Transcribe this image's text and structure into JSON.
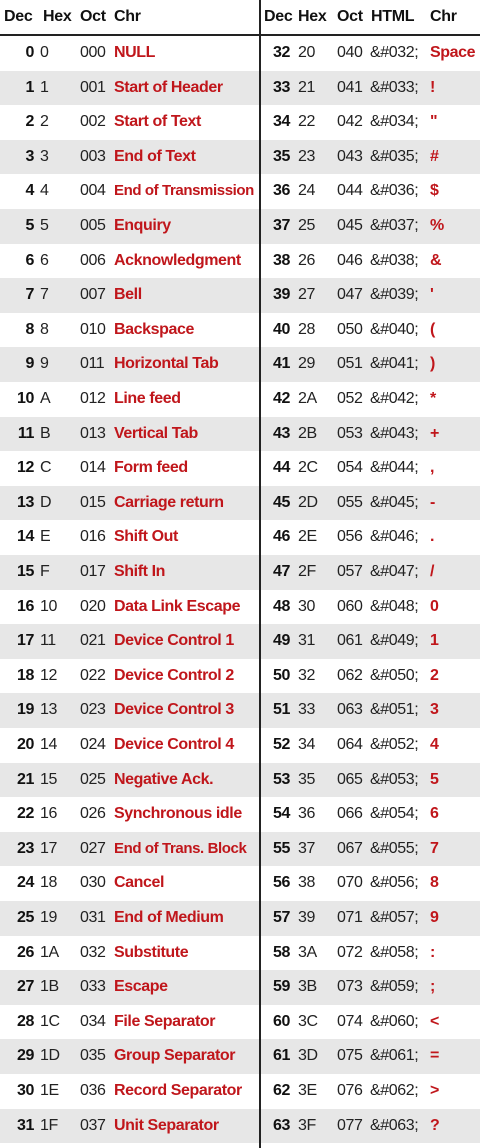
{
  "headers": {
    "left": [
      "Dec",
      "Hex",
      "Oct",
      "Chr"
    ],
    "right": [
      "Dec",
      "Hex",
      "Oct",
      "HTML",
      "Chr"
    ]
  },
  "colors": {
    "accent": "#c0161b",
    "stripe": "#e7e7e7",
    "text": "#111111"
  },
  "left_rows": [
    {
      "dec": "0",
      "hex": "0",
      "oct": "000",
      "chr": "NULL"
    },
    {
      "dec": "1",
      "hex": "1",
      "oct": "001",
      "chr": "Start of Header"
    },
    {
      "dec": "2",
      "hex": "2",
      "oct": "002",
      "chr": "Start of Text"
    },
    {
      "dec": "3",
      "hex": "3",
      "oct": "003",
      "chr": "End of Text"
    },
    {
      "dec": "4",
      "hex": "4",
      "oct": "004",
      "chr": "End of Transmission"
    },
    {
      "dec": "5",
      "hex": "5",
      "oct": "005",
      "chr": "Enquiry"
    },
    {
      "dec": "6",
      "hex": "6",
      "oct": "006",
      "chr": "Acknowledgment"
    },
    {
      "dec": "7",
      "hex": "7",
      "oct": "007",
      "chr": "Bell"
    },
    {
      "dec": "8",
      "hex": "8",
      "oct": "010",
      "chr": "Backspace"
    },
    {
      "dec": "9",
      "hex": "9",
      "oct": "011",
      "chr": "Horizontal Tab"
    },
    {
      "dec": "10",
      "hex": "A",
      "oct": "012",
      "chr": "Line feed"
    },
    {
      "dec": "11",
      "hex": "B",
      "oct": "013",
      "chr": "Vertical Tab"
    },
    {
      "dec": "12",
      "hex": "C",
      "oct": "014",
      "chr": "Form feed"
    },
    {
      "dec": "13",
      "hex": "D",
      "oct": "015",
      "chr": "Carriage return"
    },
    {
      "dec": "14",
      "hex": "E",
      "oct": "016",
      "chr": "Shift Out"
    },
    {
      "dec": "15",
      "hex": "F",
      "oct": "017",
      "chr": "Shift In"
    },
    {
      "dec": "16",
      "hex": "10",
      "oct": "020",
      "chr": "Data Link Escape"
    },
    {
      "dec": "17",
      "hex": "11",
      "oct": "021",
      "chr": "Device Control 1"
    },
    {
      "dec": "18",
      "hex": "12",
      "oct": "022",
      "chr": "Device Control 2"
    },
    {
      "dec": "19",
      "hex": "13",
      "oct": "023",
      "chr": "Device Control 3"
    },
    {
      "dec": "20",
      "hex": "14",
      "oct": "024",
      "chr": "Device Control 4"
    },
    {
      "dec": "21",
      "hex": "15",
      "oct": "025",
      "chr": "Negative Ack."
    },
    {
      "dec": "22",
      "hex": "16",
      "oct": "026",
      "chr": "Synchronous idle"
    },
    {
      "dec": "23",
      "hex": "17",
      "oct": "027",
      "chr": "End of Trans. Block"
    },
    {
      "dec": "24",
      "hex": "18",
      "oct": "030",
      "chr": "Cancel"
    },
    {
      "dec": "25",
      "hex": "19",
      "oct": "031",
      "chr": "End of Medium"
    },
    {
      "dec": "26",
      "hex": "1A",
      "oct": "032",
      "chr": "Substitute"
    },
    {
      "dec": "27",
      "hex": "1B",
      "oct": "033",
      "chr": "Escape"
    },
    {
      "dec": "28",
      "hex": "1C",
      "oct": "034",
      "chr": "File Separator"
    },
    {
      "dec": "29",
      "hex": "1D",
      "oct": "035",
      "chr": "Group Separator"
    },
    {
      "dec": "30",
      "hex": "1E",
      "oct": "036",
      "chr": "Record Separator"
    },
    {
      "dec": "31",
      "hex": "1F",
      "oct": "037",
      "chr": "Unit Separator"
    }
  ],
  "right_rows": [
    {
      "dec": "32",
      "hex": "20",
      "oct": "040",
      "html": "&#032;",
      "chr": "Space"
    },
    {
      "dec": "33",
      "hex": "21",
      "oct": "041",
      "html": "&#033;",
      "chr": "!"
    },
    {
      "dec": "34",
      "hex": "22",
      "oct": "042",
      "html": "&#034;",
      "chr": "\""
    },
    {
      "dec": "35",
      "hex": "23",
      "oct": "043",
      "html": "&#035;",
      "chr": "#"
    },
    {
      "dec": "36",
      "hex": "24",
      "oct": "044",
      "html": "&#036;",
      "chr": "$"
    },
    {
      "dec": "37",
      "hex": "25",
      "oct": "045",
      "html": "&#037;",
      "chr": "%"
    },
    {
      "dec": "38",
      "hex": "26",
      "oct": "046",
      "html": "&#038;",
      "chr": "&"
    },
    {
      "dec": "39",
      "hex": "27",
      "oct": "047",
      "html": "&#039;",
      "chr": "'"
    },
    {
      "dec": "40",
      "hex": "28",
      "oct": "050",
      "html": "&#040;",
      "chr": "("
    },
    {
      "dec": "41",
      "hex": "29",
      "oct": "051",
      "html": "&#041;",
      "chr": ")"
    },
    {
      "dec": "42",
      "hex": "2A",
      "oct": "052",
      "html": "&#042;",
      "chr": "*"
    },
    {
      "dec": "43",
      "hex": "2B",
      "oct": "053",
      "html": "&#043;",
      "chr": "+"
    },
    {
      "dec": "44",
      "hex": "2C",
      "oct": "054",
      "html": "&#044;",
      "chr": ","
    },
    {
      "dec": "45",
      "hex": "2D",
      "oct": "055",
      "html": "&#045;",
      "chr": "-"
    },
    {
      "dec": "46",
      "hex": "2E",
      "oct": "056",
      "html": "&#046;",
      "chr": "."
    },
    {
      "dec": "47",
      "hex": "2F",
      "oct": "057",
      "html": "&#047;",
      "chr": "/"
    },
    {
      "dec": "48",
      "hex": "30",
      "oct": "060",
      "html": "&#048;",
      "chr": "0"
    },
    {
      "dec": "49",
      "hex": "31",
      "oct": "061",
      "html": "&#049;",
      "chr": "1"
    },
    {
      "dec": "50",
      "hex": "32",
      "oct": "062",
      "html": "&#050;",
      "chr": "2"
    },
    {
      "dec": "51",
      "hex": "33",
      "oct": "063",
      "html": "&#051;",
      "chr": "3"
    },
    {
      "dec": "52",
      "hex": "34",
      "oct": "064",
      "html": "&#052;",
      "chr": "4"
    },
    {
      "dec": "53",
      "hex": "35",
      "oct": "065",
      "html": "&#053;",
      "chr": "5"
    },
    {
      "dec": "54",
      "hex": "36",
      "oct": "066",
      "html": "&#054;",
      "chr": "6"
    },
    {
      "dec": "55",
      "hex": "37",
      "oct": "067",
      "html": "&#055;",
      "chr": "7"
    },
    {
      "dec": "56",
      "hex": "38",
      "oct": "070",
      "html": "&#056;",
      "chr": "8"
    },
    {
      "dec": "57",
      "hex": "39",
      "oct": "071",
      "html": "&#057;",
      "chr": "9"
    },
    {
      "dec": "58",
      "hex": "3A",
      "oct": "072",
      "html": "&#058;",
      "chr": ":"
    },
    {
      "dec": "59",
      "hex": "3B",
      "oct": "073",
      "html": "&#059;",
      "chr": ";"
    },
    {
      "dec": "60",
      "hex": "3C",
      "oct": "074",
      "html": "&#060;",
      "chr": "<"
    },
    {
      "dec": "61",
      "hex": "3D",
      "oct": "075",
      "html": "&#061;",
      "chr": "="
    },
    {
      "dec": "62",
      "hex": "3E",
      "oct": "076",
      "html": "&#062;",
      "chr": ">"
    },
    {
      "dec": "63",
      "hex": "3F",
      "oct": "077",
      "html": "&#063;",
      "chr": "?"
    }
  ]
}
